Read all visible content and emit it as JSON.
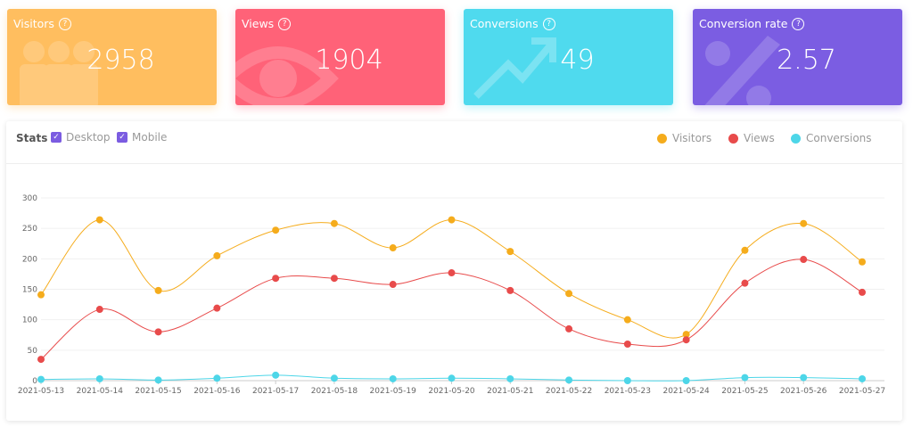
{
  "cards": [
    {
      "label": "Visitors",
      "value": 2958,
      "color": "#ffbe5f"
    },
    {
      "label": "Views",
      "value": 1904,
      "color": "#ff6278"
    },
    {
      "label": "Conversions",
      "value": 49,
      "color": "#4fdaee"
    },
    {
      "label": "Conversion rate",
      "value": 2.57,
      "color": "#7b5de2"
    }
  ],
  "filters": {
    "title": "Stats",
    "options": [
      "Desktop",
      "Mobile"
    ]
  },
  "chart_data": {
    "type": "line",
    "categories": [
      "2021-05-13",
      "2021-05-14",
      "2021-05-15",
      "2021-05-16",
      "2021-05-17",
      "2021-05-18",
      "2021-05-19",
      "2021-05-20",
      "2021-05-21",
      "2021-05-22",
      "2021-05-23",
      "2021-05-24",
      "2021-05-25",
      "2021-05-26",
      "2021-05-27"
    ],
    "series": [
      {
        "name": "Visitors",
        "color": "#f5ac1c",
        "values": [
          141,
          264,
          148,
          205,
          247,
          258,
          218,
          264,
          212,
          143,
          100,
          76,
          214,
          258,
          195
        ]
      },
      {
        "name": "Views",
        "color": "#e84b4b",
        "values": [
          35,
          117,
          80,
          119,
          168,
          168,
          158,
          177,
          148,
          85,
          60,
          67,
          160,
          199,
          145
        ]
      },
      {
        "name": "Conversions",
        "color": "#4dd6e8",
        "values": [
          2,
          3,
          1,
          4,
          9,
          4,
          3,
          4,
          3,
          1,
          0,
          0,
          5,
          5,
          3
        ]
      }
    ],
    "ylim": [
      0,
      300
    ],
    "yticks": [
      0,
      50,
      100,
      150,
      200,
      250,
      300
    ],
    "grid": true,
    "legend": "top-right"
  }
}
